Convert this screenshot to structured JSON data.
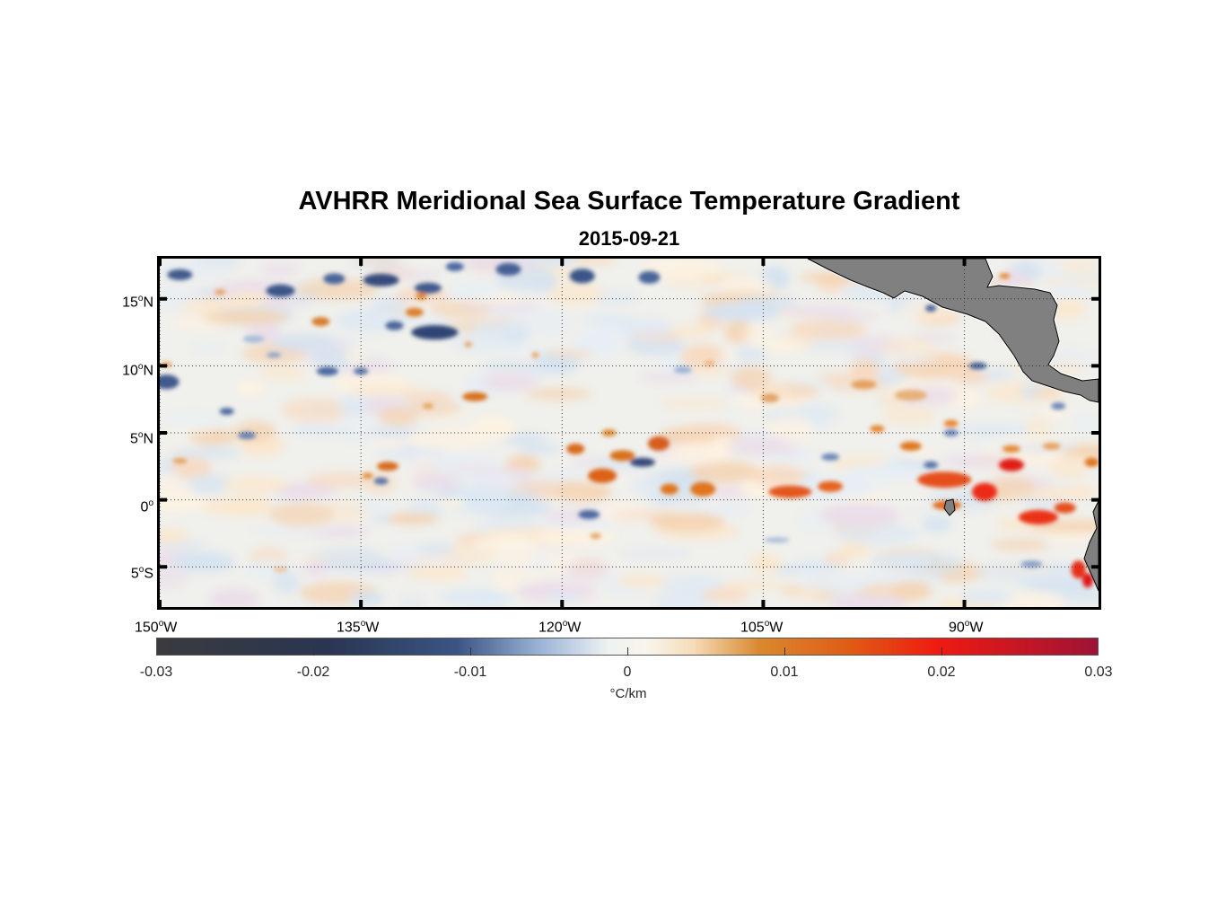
{
  "chart_data": {
    "type": "heatmap",
    "title": "AVHRR Meridional Sea Surface Temperature Gradient",
    "subtitle": "2015-09-21",
    "x_ticks": [
      {
        "deg": "150",
        "hem": "W"
      },
      {
        "deg": "135",
        "hem": "W"
      },
      {
        "deg": "120",
        "hem": "W"
      },
      {
        "deg": "105",
        "hem": "W"
      },
      {
        "deg": "90",
        "hem": "W"
      }
    ],
    "y_ticks": [
      {
        "deg": "15",
        "hem": "N"
      },
      {
        "deg": "10",
        "hem": "N"
      },
      {
        "deg": "5",
        "hem": "N"
      },
      {
        "deg": "0",
        "hem": ""
      },
      {
        "deg": "5",
        "hem": "S"
      }
    ],
    "lon_range": [
      -150,
      -80
    ],
    "lat_range": [
      -8,
      18
    ],
    "colorbar": {
      "ticks": [
        "-0.03",
        "-0.02",
        "-0.01",
        "0",
        "0.01",
        "0.02",
        "0.03"
      ],
      "range": [
        -0.03,
        0.03
      ],
      "units": "°C/km"
    },
    "land_color": "#808080",
    "grid": "dotted"
  }
}
